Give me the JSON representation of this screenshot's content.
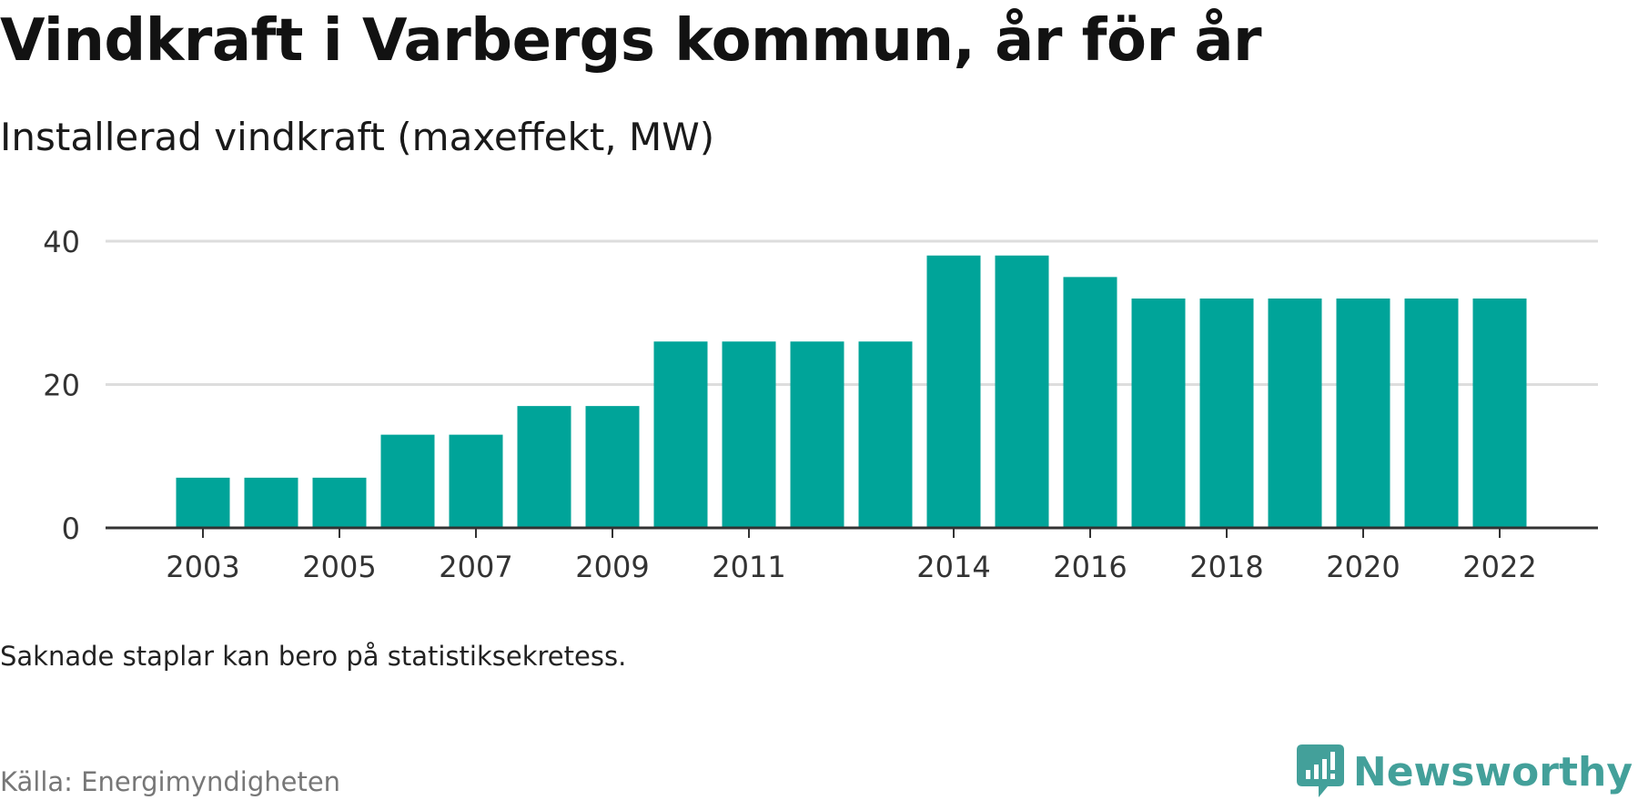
{
  "title": "Vindkraft i Varbergs kommun, år för år",
  "subtitle": "Installerad vindkraft (maxeffekt, MW)",
  "note": "Saknade staplar kan bero på statistiksekretess.",
  "source": "Källa: Energimyndigheten",
  "brand": {
    "name": "Newsworthy",
    "icon": "newsworthy-logo-icon",
    "color": "#43a09a"
  },
  "colors": {
    "bar": "#00a499",
    "grid": "#dddddd",
    "axis": "#333333",
    "tick_text": "#333333"
  },
  "chart_data": {
    "type": "bar",
    "categories": [
      2003,
      2004,
      2005,
      2006,
      2007,
      2008,
      2009,
      2010,
      2011,
      2012,
      2013,
      2014,
      2015,
      2016,
      2017,
      2018,
      2019,
      2020,
      2021,
      2022
    ],
    "values": [
      7,
      7,
      7,
      13,
      13,
      17,
      17,
      26,
      26,
      26,
      26,
      38,
      38,
      35,
      32,
      32,
      32,
      32,
      32,
      32
    ],
    "x_tick_labels": [
      "2003",
      "2005",
      "2007",
      "2009",
      "2011",
      "2014",
      "2016",
      "2018",
      "2020",
      "2022"
    ],
    "y_ticks": [
      0,
      20,
      40
    ],
    "ylim": [
      0,
      40
    ],
    "grid": true,
    "xlabel": "",
    "ylabel": ""
  }
}
